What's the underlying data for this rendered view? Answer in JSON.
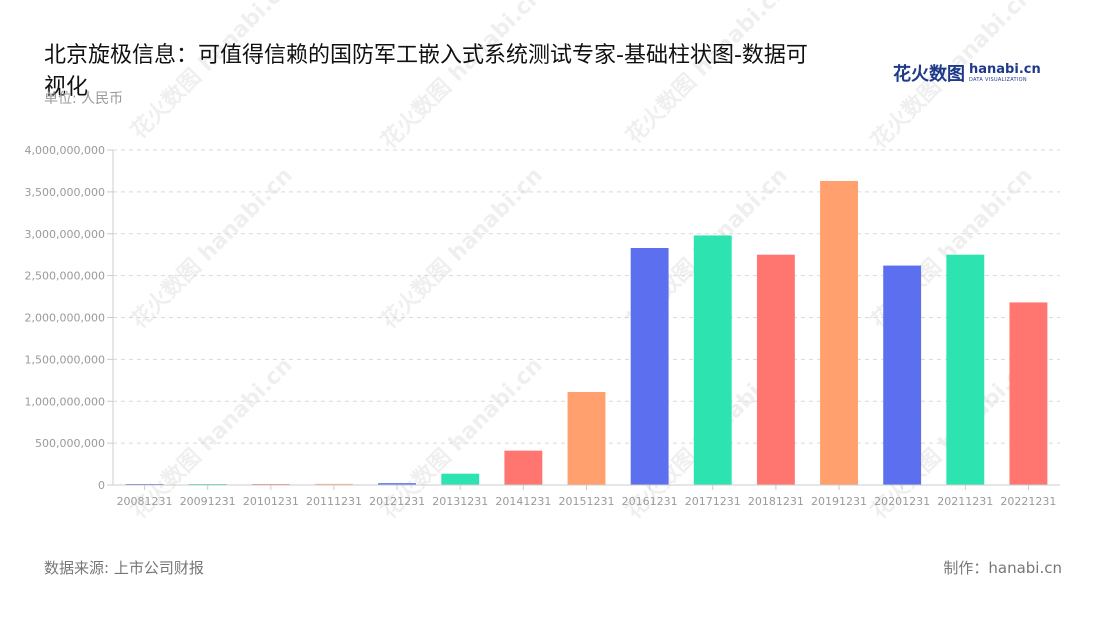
{
  "header": {
    "title": "北京旋极信息：可值得信赖的国防军工嵌入式系统测试专家-基础柱状图-数据可视化",
    "unit": "单位: 人民币"
  },
  "logo": {
    "cn": "花火数图",
    "en": "hanabi.cn",
    "en_sub": "DATA VISUALIZATION",
    "color": "#1f3a8a"
  },
  "footer": {
    "source": "数据来源: 上市公司财报",
    "credit": "制作：hanabi.cn"
  },
  "watermark_text": "花火数图 hanabi.cn",
  "chart_data": {
    "type": "bar",
    "categories": [
      "20081231",
      "20091231",
      "20101231",
      "20111231",
      "20121231",
      "20131231",
      "20141231",
      "20151231",
      "20161231",
      "20171231",
      "20181231",
      "20191231",
      "20201231",
      "20211231",
      "20221231"
    ],
    "values": [
      8000000,
      9000000,
      10000000,
      13000000,
      22000000,
      135000000,
      410000000,
      1110000000,
      2830000000,
      2980000000,
      2750000000,
      3630000000,
      2620000000,
      2750000000,
      2180000000
    ],
    "colors": [
      "#5b6fef",
      "#2de4b0",
      "#ff7570",
      "#ffa06e",
      "#5b6fef",
      "#2de4b0",
      "#ff7570",
      "#ffa06e",
      "#5b6fef",
      "#2de4b0",
      "#ff7570",
      "#ffa06e",
      "#5b6fef",
      "#2de4b0",
      "#ff7570"
    ],
    "yticks": [
      "0",
      "500,000,000",
      "1,000,000,000",
      "1,500,000,000",
      "2,000,000,000",
      "2,500,000,000",
      "3,000,000,000",
      "3,500,000,000",
      "4,000,000,000"
    ],
    "ylim": [
      0,
      4000000000
    ],
    "grid": true,
    "xlabel": "",
    "ylabel": ""
  }
}
